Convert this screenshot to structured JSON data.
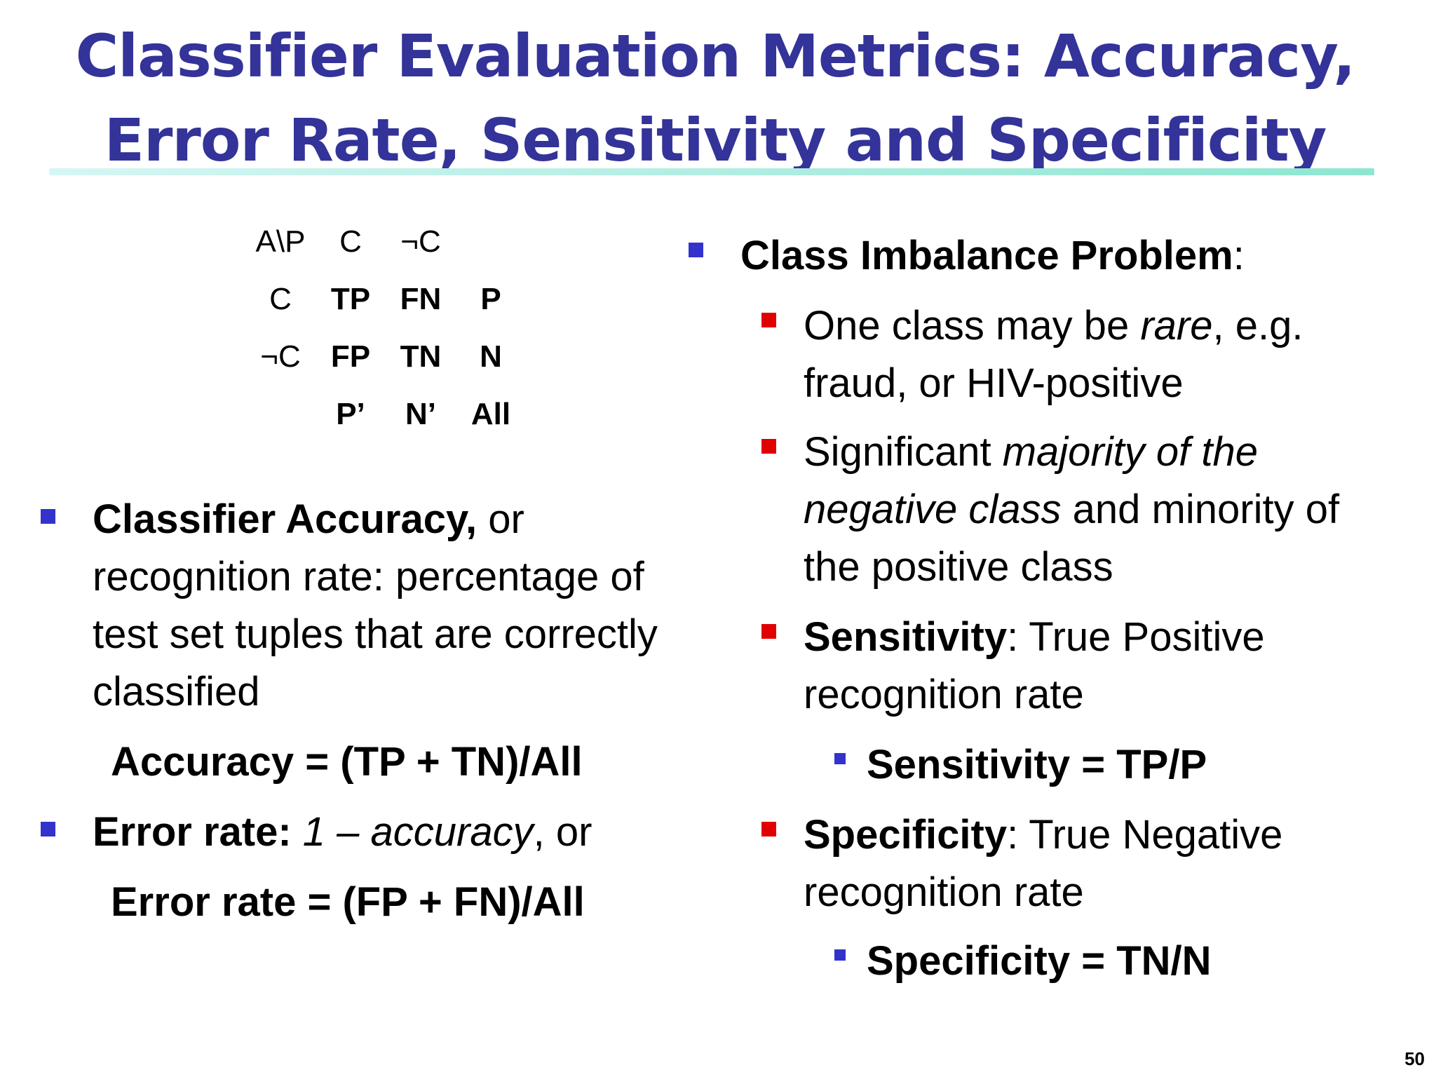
{
  "slide": {
    "title_line1": "Classifier Evaluation Metrics: Accuracy,",
    "title_line2": "Error Rate, Sensitivity and Specificity",
    "page_number": "50"
  },
  "matrix": {
    "header": [
      "A\\P",
      "C",
      "¬C"
    ],
    "row1": [
      "C",
      "TP",
      "FN",
      "P"
    ],
    "row2": [
      "¬C",
      "FP",
      "TN",
      "N"
    ],
    "totals": [
      "P’",
      "N’",
      "All"
    ]
  },
  "left": {
    "accuracy_bold": "Classifier Accuracy,",
    "accuracy_rest1": " or",
    "accuracy_line2": "recognition rate: percentage of",
    "accuracy_line3": "test set tuples that are correctly",
    "accuracy_line4": "classified",
    "accuracy_formula": "Accuracy = (TP + TN)/All",
    "error_bold": "Error rate:",
    "error_italic": "1 – accuracy",
    "error_rest": ", or",
    "error_formula": "Error rate = (FP + FN)/All"
  },
  "right": {
    "imbalance_bold": "Class Imbalance Problem",
    "imbalance_rest": ":",
    "rare_pre": "One class may be ",
    "rare_italic": "rare",
    "rare_post": ", e.g.",
    "rare_line2": "fraud, or HIV-positive",
    "sig_pre": "Significant ",
    "sig_italic1": "majority of the",
    "sig_italic2": "negative class",
    "sig_post": " and minority of",
    "sig_line3": "the positive class",
    "sens_bold": "Sensitivity",
    "sens_rest": ": True Positive",
    "sens_line2": "recognition rate",
    "sens_formula": "Sensitivity = TP/P",
    "spec_bold": "Specificity",
    "spec_rest": ": True Negative",
    "spec_line2": "recognition rate",
    "spec_formula": "Specificity = TN/N"
  },
  "colors": {
    "title": "#333399",
    "bullet_primary": "#3333cc",
    "bullet_secondary": "#e00000"
  }
}
